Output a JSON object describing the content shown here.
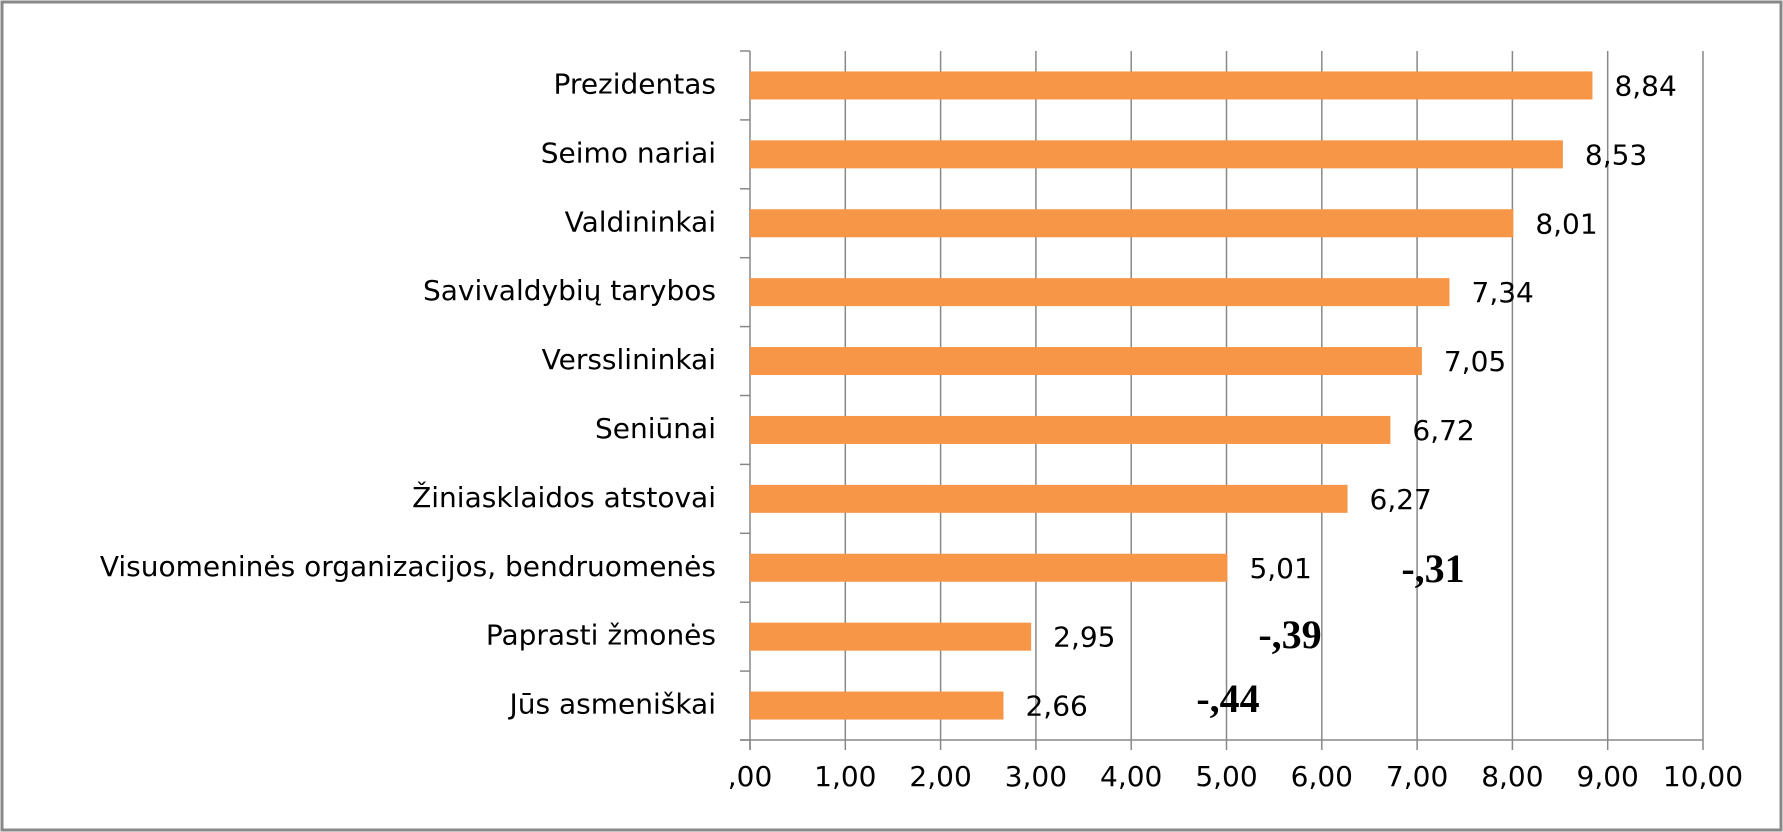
{
  "chart_data": {
    "type": "bar",
    "orientation": "horizontal",
    "categories": [
      "Prezidentas",
      "Seimo nariai",
      "Valdininkai",
      "Savivaldybių tarybos",
      "Versslininkai",
      "Seniūnai",
      "Žiniasklaidos atstovai",
      "Visuomeninės organizacijos, bendruomenės",
      "Paprasti žmonės",
      "Jūs asmeniškai"
    ],
    "values": [
      8.84,
      8.53,
      8.01,
      7.34,
      7.05,
      6.72,
      6.27,
      5.01,
      2.95,
      2.66
    ],
    "value_labels": [
      "8,84",
      "8,53",
      "8,01",
      "7,34",
      "7,05",
      "6,72",
      "6,27",
      "5,01",
      "2,95",
      "2,66"
    ],
    "color": "#f79646",
    "xlim": [
      0,
      10
    ],
    "xticks": [
      {
        "value": 0,
        "label": ",00"
      },
      {
        "value": 1,
        "label": "1,00"
      },
      {
        "value": 2,
        "label": "2,00"
      },
      {
        "value": 3,
        "label": "3,00"
      },
      {
        "value": 4,
        "label": "4,00"
      },
      {
        "value": 5,
        "label": "5,00"
      },
      {
        "value": 6,
        "label": "6,00"
      },
      {
        "value": 7,
        "label": "7,00"
      },
      {
        "value": 8,
        "label": "8,00"
      },
      {
        "value": 9,
        "label": "9,00"
      },
      {
        "value": 10,
        "label": "10,00"
      }
    ],
    "grid": true,
    "annotations": [
      "-,31",
      "-,39",
      "-,44"
    ]
  }
}
